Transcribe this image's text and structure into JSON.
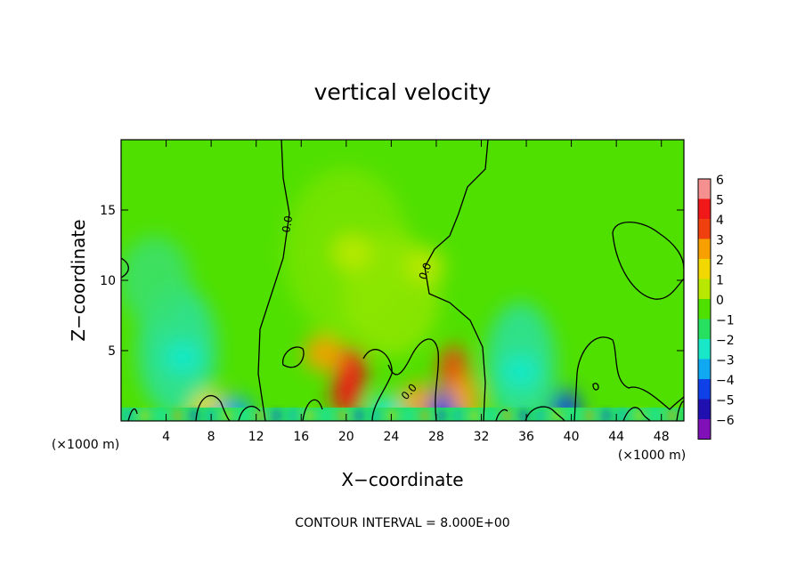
{
  "chart_data": {
    "type": "heatmap",
    "title": "vertical velocity",
    "xlabel": "X−coordinate",
    "ylabel": "Z−coordinate",
    "x_unit": "(×1000 m)",
    "xlim": [
      0,
      50
    ],
    "ylim": [
      0,
      20
    ],
    "x_ticks": [
      4,
      8,
      12,
      16,
      20,
      24,
      28,
      32,
      36,
      40,
      44,
      48
    ],
    "y_ticks": [
      5,
      10,
      15
    ],
    "footer": "CONTOUR INTERVAL = 8.000E+00",
    "contour_label": "0.0",
    "colorbar": {
      "labels": [
        "6",
        "5",
        "4",
        "3",
        "2",
        "1",
        "0",
        "−1",
        "−2",
        "−3",
        "−4",
        "−5",
        "−6"
      ],
      "levels": [
        6,
        5,
        4,
        3,
        2,
        1,
        0,
        -1,
        -2,
        -3,
        -4,
        -5,
        -6
      ],
      "colors": [
        "#f59090",
        "#f01818",
        "#f04010",
        "#f8a000",
        "#f0d800",
        "#b8e800",
        "#50e000",
        "#28e060",
        "#18e8c8",
        "#10a8f0",
        "#1040e8",
        "#2010b0",
        "#8010b8"
      ]
    },
    "features": [
      {
        "x": 20.5,
        "z": 3.5,
        "value": 5.2
      },
      {
        "x": 20.0,
        "z": 2.0,
        "value": 4.6
      },
      {
        "x": 18.0,
        "z": 4.8,
        "value": 3.0
      },
      {
        "x": 29.5,
        "z": 3.6,
        "value": 3.5
      },
      {
        "x": 30.5,
        "z": 1.5,
        "value": 3.2
      },
      {
        "x": 26.5,
        "z": 1.4,
        "value": 2.8
      },
      {
        "x": 8.0,
        "z": 0.8,
        "value": 2.0
      },
      {
        "x": 20.5,
        "z": 12.0,
        "value": 1.2
      },
      {
        "x": 27.0,
        "z": 11.0,
        "value": 1.0
      },
      {
        "x": 5.5,
        "z": 4.5,
        "value": -1.8
      },
      {
        "x": 35.5,
        "z": 3.5,
        "value": -2.0
      },
      {
        "x": 39.5,
        "z": 0.5,
        "value": -4.2
      },
      {
        "x": 28.5,
        "z": 0.4,
        "value": -4.0
      },
      {
        "x": 10.0,
        "z": 0.5,
        "value": -2.6
      },
      {
        "x": 23.5,
        "z": 0.6,
        "value": -2.2
      }
    ]
  }
}
